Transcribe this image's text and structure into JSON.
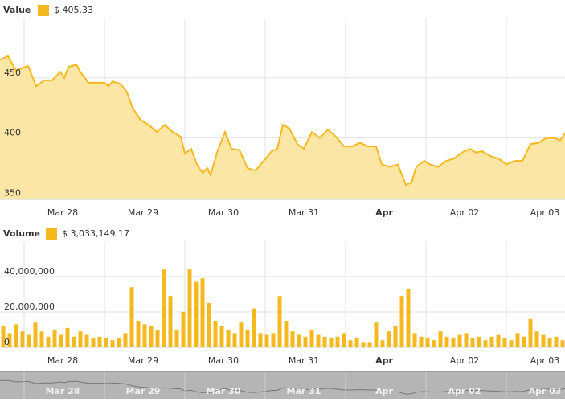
{
  "chart_data": [
    {
      "type": "area",
      "title": "Value",
      "current_label": "$ 405.33",
      "color": "#f5b920",
      "fill": "#fbe6a6",
      "x": [
        0,
        0.1,
        0.2,
        0.35,
        0.45,
        0.55,
        0.65,
        0.75,
        0.8,
        0.85,
        0.95,
        1.0,
        1.1,
        1.2,
        1.3,
        1.35,
        1.4,
        1.5,
        1.58,
        1.65,
        1.75,
        1.85,
        1.95,
        2.05,
        2.15,
        2.25,
        2.3,
        2.38,
        2.45,
        2.52,
        2.58,
        2.62,
        2.7,
        2.8,
        2.88,
        2.98,
        3.08,
        3.18,
        3.28,
        3.38,
        3.45,
        3.52,
        3.6,
        3.7,
        3.78,
        3.88,
        3.98,
        4.08,
        4.18,
        4.28,
        4.38,
        4.48,
        4.58,
        4.68,
        4.75,
        4.85,
        4.95,
        5.05,
        5.12,
        5.18,
        5.28,
        5.35,
        5.45,
        5.55,
        5.65,
        5.75,
        5.85,
        5.92,
        6.0,
        6.1,
        6.2,
        6.3,
        6.4,
        6.5,
        6.6,
        6.7,
        6.8,
        6.9,
        6.97,
        7.03
      ],
      "values": [
        465,
        468,
        456,
        460,
        443,
        448,
        448,
        455,
        450,
        459,
        461,
        455,
        446,
        446,
        446,
        443,
        447,
        445,
        438,
        425,
        415,
        411,
        405,
        411,
        405,
        401,
        387,
        391,
        378,
        371,
        375,
        369,
        388,
        405,
        391,
        390,
        375,
        373,
        381,
        389,
        391,
        411,
        408,
        395,
        391,
        405,
        400,
        407,
        401,
        393,
        393,
        396,
        393,
        393,
        378,
        376,
        378,
        361,
        363,
        376,
        381,
        378,
        376,
        381,
        383,
        388,
        391,
        388,
        389,
        385,
        383,
        378,
        381,
        381,
        395,
        396,
        400,
        400,
        398,
        404
      ],
      "xlim": [
        0,
        7.03
      ],
      "xticks": [
        {
          "value": 0.3,
          "label": "Mar 28"
        },
        {
          "value": 1.3,
          "label": "Mar 29"
        },
        {
          "value": 2.3,
          "label": "Mar 30"
        },
        {
          "value": 3.3,
          "label": "Mar 31"
        },
        {
          "value": 4.3,
          "label": "Apr",
          "bold": true
        },
        {
          "value": 5.3,
          "label": "Apr 02"
        },
        {
          "value": 6.3,
          "label": "Apr 03"
        }
      ],
      "ylim": [
        349,
        500
      ],
      "yticks": [
        350,
        400,
        450
      ],
      "grid": true
    },
    {
      "type": "bar",
      "title": "Volume",
      "current_label": "$ 3,033,149.17",
      "color": "#f5b920",
      "fill": "#f5b920",
      "x": [
        0.04,
        0.12,
        0.2,
        0.28,
        0.36,
        0.44,
        0.52,
        0.6,
        0.68,
        0.76,
        0.84,
        0.92,
        1.0,
        1.08,
        1.16,
        1.24,
        1.32,
        1.4,
        1.48,
        1.56,
        1.64,
        1.72,
        1.8,
        1.88,
        1.96,
        2.04,
        2.12,
        2.2,
        2.28,
        2.36,
        2.44,
        2.52,
        2.6,
        2.68,
        2.76,
        2.84,
        2.92,
        3.0,
        3.08,
        3.16,
        3.24,
        3.32,
        3.4,
        3.48,
        3.56,
        3.64,
        3.72,
        3.8,
        3.88,
        3.96,
        4.04,
        4.12,
        4.2,
        4.28,
        4.36,
        4.44,
        4.52,
        4.6,
        4.68,
        4.76,
        4.84,
        4.92,
        5.0,
        5.08,
        5.16,
        5.24,
        5.32,
        5.4,
        5.48,
        5.56,
        5.64,
        5.72,
        5.8,
        5.88,
        5.96,
        6.04,
        6.12,
        6.2,
        6.28,
        6.36,
        6.44,
        6.52,
        6.6,
        6.68,
        6.76,
        6.84,
        6.92,
        7.0
      ],
      "values": [
        12000000,
        8000000,
        13000000,
        9000000,
        7000000,
        14000000,
        9000000,
        6000000,
        10000000,
        7000000,
        11000000,
        6000000,
        9000000,
        7000000,
        5000000,
        6000000,
        5000000,
        4000000,
        5000000,
        8000000,
        34000000,
        15000000,
        13000000,
        12000000,
        10000000,
        44000000,
        29000000,
        10000000,
        20000000,
        44000000,
        37000000,
        39000000,
        25000000,
        15000000,
        12000000,
        10000000,
        8000000,
        14000000,
        10000000,
        22000000,
        8000000,
        7000000,
        8000000,
        29000000,
        15000000,
        9000000,
        7000000,
        6000000,
        10000000,
        7000000,
        6000000,
        5000000,
        6000000,
        8000000,
        4000000,
        5000000,
        3000000,
        3000000,
        14000000,
        4000000,
        9000000,
        12000000,
        29000000,
        33000000,
        8000000,
        6000000,
        5000000,
        4000000,
        9000000,
        6000000,
        5000000,
        7000000,
        8000000,
        5000000,
        6000000,
        4000000,
        6000000,
        7000000,
        5000000,
        4000000,
        8000000,
        6000000,
        16000000,
        9000000,
        7000000,
        5000000,
        6000000,
        4000000
      ],
      "xlim": [
        0,
        7.03
      ],
      "xticks": [
        {
          "value": 0.3,
          "label": "Mar 28"
        },
        {
          "value": 1.3,
          "label": "Mar 29"
        },
        {
          "value": 2.3,
          "label": "Mar 30"
        },
        {
          "value": 3.3,
          "label": "Mar 31"
        },
        {
          "value": 4.3,
          "label": "Apr",
          "bold": true
        },
        {
          "value": 5.3,
          "label": "Apr 02"
        },
        {
          "value": 6.3,
          "label": "Apr 03"
        }
      ],
      "ylim": [
        0,
        60000000
      ],
      "yticks": [
        0,
        {
          "value": 20000000,
          "label": "20,000,000"
        },
        {
          "value": 40000000,
          "label": "40,000,000"
        }
      ],
      "grid": true
    }
  ]
}
